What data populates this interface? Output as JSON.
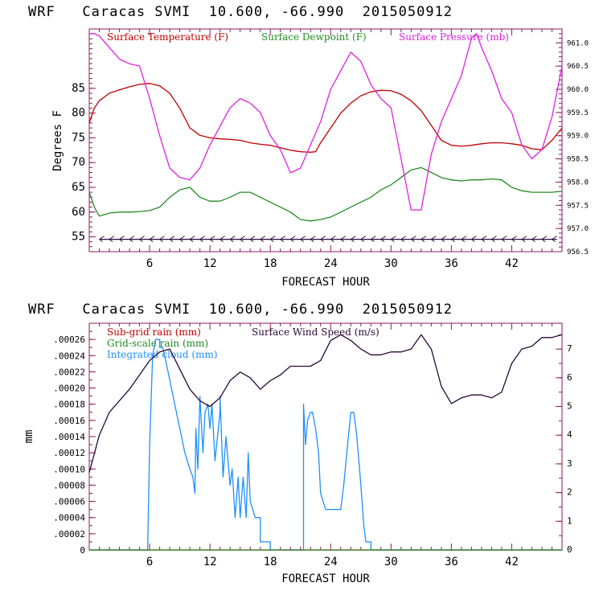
{
  "colors": {
    "temperature": "#c00000",
    "dewpoint": "#228b22",
    "pressure": "#e020e0",
    "subgrid": "#c00000",
    "gridscale": "#228b22",
    "cloud": "#1e90ff",
    "wind": "#2a0838",
    "frame": "#8b1a60"
  },
  "chart_data": [
    {
      "type": "line",
      "title": "WRF   Caracas SVMI  10.600, -66.990  2015050912",
      "xlabel": "FORECAST HOUR",
      "ylabel": "Degrees F",
      "xlim": [
        0,
        47
      ],
      "ylim": [
        52,
        97
      ],
      "x_ticks": [
        6,
        12,
        18,
        24,
        30,
        36,
        42
      ],
      "y_ticks": [
        55,
        60,
        65,
        70,
        75,
        80,
        85
      ],
      "y2lim": [
        956.5,
        961.3
      ],
      "y2_ticks": [
        "956.5",
        "957.0",
        "957.5",
        "958.0",
        "958.5",
        "959.0",
        "959.5",
        "960.0",
        "960.5",
        "961.0"
      ],
      "legend": [
        "Surface Temperature (F)",
        "Surface Dewpoint (F)",
        "Surface Pressure (mb)"
      ],
      "legend_position": "top",
      "wind_barb_level": 54.5,
      "series": [
        {
          "name": "Surface Temperature (F)",
          "axis": "left",
          "x": [
            0,
            0.5,
            1,
            2,
            3,
            4,
            5,
            6,
            7,
            8,
            9,
            10,
            11,
            12,
            13,
            14,
            15,
            16,
            17,
            18,
            19,
            20,
            21,
            22,
            22.5,
            23,
            24,
            25,
            26,
            27,
            28,
            29,
            30,
            31,
            32,
            33,
            34,
            35,
            36,
            37,
            38,
            39,
            40,
            41,
            42,
            43,
            44,
            45,
            46,
            47
          ],
          "y": [
            78,
            81,
            82.5,
            84,
            84.7,
            85.3,
            85.8,
            86,
            85.5,
            84,
            81,
            77,
            75.5,
            75,
            74.8,
            74.7,
            74.5,
            74,
            73.7,
            73.5,
            73,
            72.5,
            72.2,
            72.1,
            72.2,
            74,
            77,
            80,
            82,
            83.5,
            84.3,
            84.6,
            84.5,
            83.8,
            82.5,
            80.5,
            77.5,
            74.5,
            73.5,
            73.3,
            73.5,
            73.8,
            74,
            74,
            73.8,
            73.5,
            72.8,
            72.6,
            74.5,
            77
          ]
        },
        {
          "name": "Surface Dewpoint (F)",
          "axis": "left",
          "x": [
            0,
            0.5,
            1,
            2,
            3,
            4,
            5,
            6,
            7,
            8,
            9,
            10,
            11,
            12,
            13,
            14,
            15,
            16,
            17,
            18,
            19,
            20,
            21,
            22,
            23,
            24,
            25,
            26,
            27,
            28,
            29,
            30,
            31,
            32,
            33,
            34,
            35,
            36,
            37,
            38,
            39,
            40,
            41,
            42,
            43,
            44,
            45,
            46,
            47
          ],
          "y": [
            64,
            61,
            59.2,
            59.8,
            60,
            60,
            60.1,
            60.3,
            61,
            63,
            64.5,
            65,
            63,
            62.2,
            62.2,
            63,
            64,
            64,
            63,
            62,
            61,
            60,
            58.5,
            58.2,
            58.5,
            59,
            60,
            61,
            62,
            63,
            64.5,
            65.5,
            67,
            68.5,
            69,
            68,
            67,
            66.5,
            66.3,
            66.5,
            66.5,
            66.7,
            66.5,
            65,
            64.3,
            64,
            64,
            64,
            64.2
          ]
        },
        {
          "name": "Surface Pressure (mb)",
          "axis": "right",
          "x": [
            0,
            0.5,
            1,
            2,
            3,
            3.5,
            4,
            5,
            6,
            7,
            8,
            9,
            10,
            11,
            12,
            13,
            14,
            15,
            16,
            17,
            18,
            19,
            20,
            21,
            22,
            23,
            24,
            25,
            26,
            27,
            28,
            29,
            30,
            31,
            32,
            33,
            34,
            35,
            36,
            37,
            38,
            38.5,
            39,
            40,
            41,
            42,
            43,
            44,
            45,
            46,
            47
          ],
          "y": [
            961.2,
            961.2,
            961.15,
            960.9,
            960.65,
            960.6,
            960.55,
            960.5,
            959.8,
            959,
            958.3,
            958.1,
            958.05,
            958.3,
            958.8,
            959.2,
            959.6,
            959.8,
            959.7,
            959.5,
            959,
            958.7,
            958.2,
            958.3,
            958.8,
            959.3,
            960,
            960.4,
            960.8,
            960.6,
            960.1,
            959.8,
            959.6,
            958.5,
            957.4,
            957.4,
            958.6,
            959.3,
            959.8,
            960.3,
            961.1,
            961.2,
            960.9,
            960.4,
            959.8,
            959.5,
            958.8,
            958.5,
            958.7,
            959.4,
            960.5
          ]
        }
      ]
    },
    {
      "type": "line",
      "title": "WRF   Caracas SVMI  10.600, -66.990  2015050912",
      "xlabel": "FORECAST HOUR",
      "ylabel": "mm",
      "xlim": [
        0,
        47
      ],
      "ylim": [
        0,
        0.00028
      ],
      "x_ticks": [
        6,
        12,
        18,
        24,
        30,
        36,
        42
      ],
      "y_ticks": [
        "0",
        ".00002",
        ".00004",
        ".00006",
        ".00008",
        ".00010",
        ".00012",
        ".00014",
        ".00016",
        ".00018",
        ".00020",
        ".00022",
        ".00024",
        ".00026"
      ],
      "y2lim": [
        0,
        7.9
      ],
      "y2_ticks": [
        "0",
        "1",
        "2",
        "3",
        "4",
        "5",
        "6",
        "7"
      ],
      "legend": [
        "Sub-grid rain (mm)",
        "Grid-scale rain (mm)",
        "Integrated cloud (mm)",
        "Surface Wind Speed (m/s)"
      ],
      "legend_position": "top-left",
      "series": [
        {
          "name": "Integrated cloud (mm)",
          "axis": "left",
          "x": [
            0,
            5.8,
            6,
            6.3,
            6.6,
            6.6,
            7,
            7,
            7.3,
            7.5,
            8,
            8.5,
            9,
            9.5,
            10,
            10.3,
            10.5,
            10.6,
            10.8,
            11,
            11.3,
            11.5,
            11.8,
            12,
            12.2,
            12.5,
            13,
            13,
            13.3,
            13.6,
            14,
            14.2,
            14.5,
            14.8,
            15,
            15.3,
            15.6,
            15.8,
            16,
            16.5,
            17,
            17,
            17.5,
            18,
            18,
            21.3,
            21.3,
            21.5,
            21.7,
            22,
            22.2,
            22.5,
            22.8,
            23,
            23.5,
            24,
            24.5,
            25,
            25.3,
            25.6,
            26,
            26.3,
            26.6,
            27,
            27.3,
            27.5,
            27.8,
            28,
            28,
            28.2,
            47
          ],
          "y": [
            0,
            0,
            0.00013,
            0.00024,
            0.00026,
            0.00026,
            0.00026,
            0.00025,
            0.00025,
            0.00024,
            0.00021,
            0.00018,
            0.00015,
            0.00012,
            0.0001,
            9e-05,
            7e-05,
            0.00015,
            0.0001,
            0.00019,
            0.00012,
            0.00017,
            0.00018,
            0.00015,
            0.00018,
            0.00011,
            0.00017,
            0.00019,
            9e-05,
            0.00014,
            8e-05,
            0.0001,
            4e-05,
            9e-05,
            4e-05,
            9e-05,
            4e-05,
            0.00012,
            6e-05,
            4e-05,
            4e-05,
            1e-05,
            1e-05,
            1e-05,
            0,
            0,
            0.00018,
            0.00013,
            0.00016,
            0.00017,
            0.00017,
            0.00015,
            0.00012,
            7e-05,
            5e-05,
            5e-05,
            5e-05,
            5e-05,
            8e-05,
            0.00012,
            0.00017,
            0.00017,
            0.00014,
            8e-05,
            3e-05,
            1e-05,
            1e-05,
            1e-05,
            0,
            0,
            0
          ]
        },
        {
          "name": "Surface Wind Speed (m/s)",
          "axis": "right",
          "x": [
            0,
            1,
            2,
            3,
            4,
            5,
            6,
            7,
            8,
            9,
            10,
            11,
            12,
            13,
            14,
            15,
            16,
            17,
            18,
            19,
            20,
            21,
            22,
            23,
            24,
            25,
            26,
            27,
            28,
            29,
            30,
            31,
            32,
            33,
            34,
            35,
            36,
            37,
            38,
            39,
            40,
            41,
            42,
            43,
            44,
            45,
            46,
            47
          ],
          "y": [
            2.7,
            4,
            4.8,
            5.2,
            5.6,
            6.1,
            6.6,
            6.9,
            7,
            6.3,
            5.6,
            5.2,
            5,
            5.3,
            5.9,
            6.2,
            6,
            5.6,
            5.9,
            6.1,
            6.4,
            6.4,
            6.4,
            6.6,
            7.3,
            7.5,
            7.3,
            7,
            6.8,
            6.8,
            6.9,
            6.9,
            7,
            7.5,
            7,
            5.7,
            5.1,
            5.3,
            5.4,
            5.4,
            5.3,
            5.5,
            6.5,
            7,
            7.1,
            7.4,
            7.4,
            7.5
          ]
        },
        {
          "name": "Sub-grid rain (mm)",
          "axis": "left",
          "x": [
            0,
            47
          ],
          "y": [
            0,
            0
          ]
        },
        {
          "name": "Grid-scale rain (mm)",
          "axis": "left",
          "x": [
            0,
            47
          ],
          "y": [
            0,
            0
          ]
        }
      ]
    }
  ]
}
